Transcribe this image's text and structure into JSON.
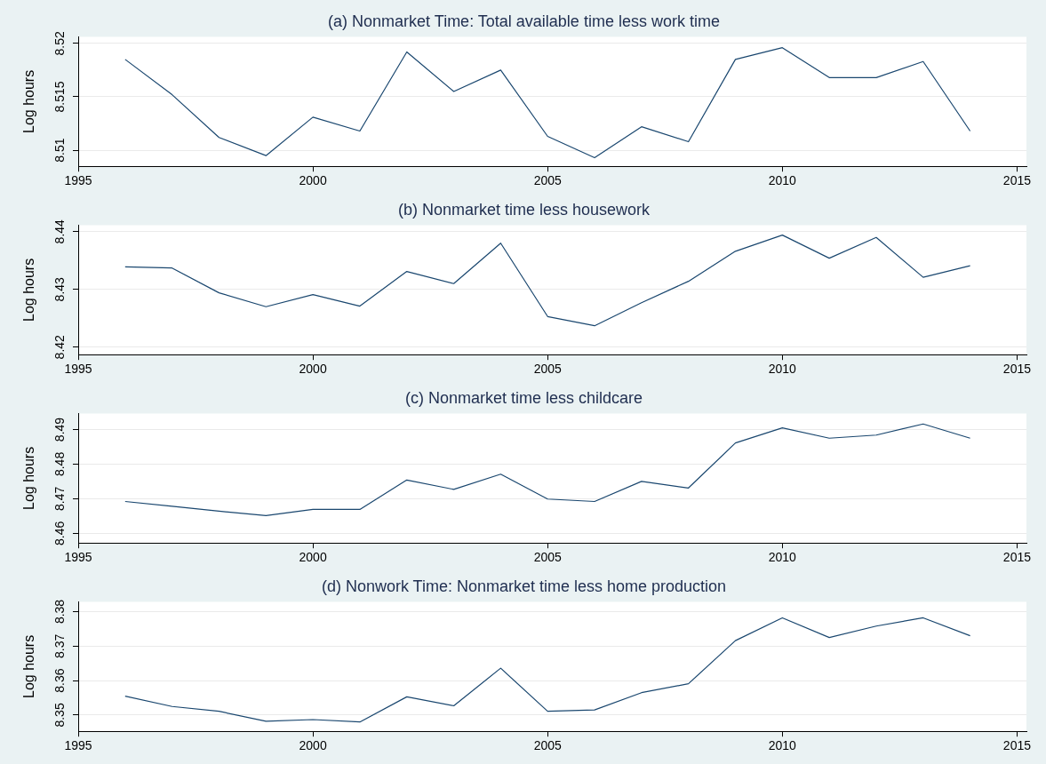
{
  "chart_data": [
    {
      "type": "line",
      "title": "(a) Nonmarket Time: Total available time less work time",
      "ylabel": "Log hours",
      "x": [
        1996,
        1997,
        1998,
        1999,
        2000,
        2001,
        2002,
        2003,
        2004,
        2005,
        2006,
        2007,
        2008,
        2009,
        2010,
        2011,
        2012,
        2013,
        2014
      ],
      "series": [
        {
          "color": "#1a476f",
          "values": [
            8.5185,
            8.5152,
            8.5112,
            8.5095,
            8.5131,
            8.5118,
            8.5192,
            8.5155,
            8.5175,
            8.5113,
            8.5093,
            8.5122,
            8.5108,
            8.5185,
            8.5196,
            8.5168,
            8.5168,
            8.5183,
            8.5118
          ]
        }
      ],
      "xlim": [
        1995,
        2015.2
      ],
      "xticks": [
        1995,
        2000,
        2005,
        2010,
        2015
      ],
      "ylim": [
        8.5085,
        8.5206
      ],
      "yticks": [
        8.51,
        8.515,
        8.52
      ],
      "grid": "y",
      "legend": false,
      "marker": "none"
    },
    {
      "type": "line",
      "title": "(b) Nonmarket time less housework",
      "ylabel": "Log hours",
      "x": [
        1996,
        1997,
        1998,
        1999,
        2000,
        2001,
        2002,
        2003,
        2004,
        2005,
        2006,
        2007,
        2008,
        2009,
        2010,
        2011,
        2012,
        2013,
        2014
      ],
      "series": [
        {
          "color": "#1a476f",
          "values": [
            8.4339,
            8.4337,
            8.4294,
            8.427,
            8.4291,
            8.4271,
            8.4331,
            8.431,
            8.438,
            8.4253,
            8.4237,
            8.4277,
            8.4314,
            8.4366,
            8.4394,
            8.4354,
            8.439,
            8.4321,
            8.4341
          ]
        }
      ],
      "xlim": [
        1995,
        2015.2
      ],
      "xticks": [
        1995,
        2000,
        2005,
        2010,
        2015
      ],
      "ylim": [
        8.4187,
        8.4411
      ],
      "yticks": [
        8.42,
        8.43,
        8.44
      ],
      "grid": "y",
      "legend": false,
      "marker": "none"
    },
    {
      "type": "line",
      "title": "(c) Nonmarket time less childcare",
      "ylabel": "Log hours",
      "x": [
        1996,
        1997,
        1998,
        1999,
        2000,
        2001,
        2002,
        2003,
        2004,
        2005,
        2006,
        2007,
        2008,
        2009,
        2010,
        2011,
        2012,
        2013,
        2014
      ],
      "series": [
        {
          "color": "#1a476f",
          "values": [
            8.4692,
            8.4678,
            8.4664,
            8.4651,
            8.4669,
            8.4669,
            8.4754,
            8.4727,
            8.4771,
            8.4699,
            8.4692,
            8.475,
            8.4731,
            8.4861,
            8.4905,
            8.4875,
            8.4884,
            8.4916,
            8.4875
          ]
        }
      ],
      "xlim": [
        1995,
        2015.2
      ],
      "xticks": [
        1995,
        2000,
        2005,
        2010,
        2015
      ],
      "ylim": [
        8.4572,
        8.4946
      ],
      "yticks": [
        8.46,
        8.47,
        8.48,
        8.49
      ],
      "grid": "y",
      "legend": false,
      "marker": "none"
    },
    {
      "type": "line",
      "title": "(d) Nonwork Time: Nonmarket time less home production",
      "ylabel": "Log hours",
      "x": [
        1996,
        1997,
        1998,
        1999,
        2000,
        2001,
        2002,
        2003,
        2004,
        2005,
        2006,
        2007,
        2008,
        2009,
        2010,
        2011,
        2012,
        2013,
        2014
      ],
      "series": [
        {
          "color": "#1a476f",
          "values": [
            8.3555,
            8.3525,
            8.3511,
            8.3482,
            8.3487,
            8.348,
            8.3553,
            8.3527,
            8.3636,
            8.3511,
            8.3515,
            8.3565,
            8.3591,
            8.3716,
            8.3782,
            8.3725,
            8.3758,
            8.3782,
            8.373
          ]
        }
      ],
      "xlim": [
        1995,
        2015.2
      ],
      "xticks": [
        1995,
        2000,
        2005,
        2010,
        2015
      ],
      "ylim": [
        8.3453,
        8.3828
      ],
      "yticks": [
        8.35,
        8.36,
        8.37,
        8.38
      ],
      "grid": "y",
      "legend": false,
      "marker": "none"
    }
  ]
}
